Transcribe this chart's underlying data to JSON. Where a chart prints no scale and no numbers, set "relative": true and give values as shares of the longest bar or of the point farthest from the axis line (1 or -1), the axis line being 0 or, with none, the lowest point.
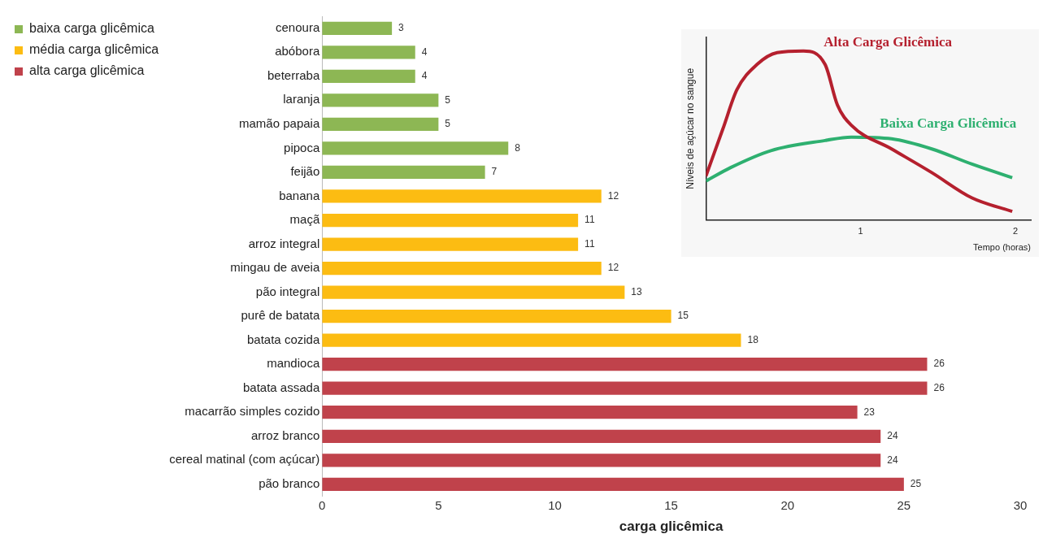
{
  "chart_data": [
    {
      "type": "bar",
      "orientation": "horizontal",
      "stacked": true,
      "xlabel": "carga glicêmica",
      "categories": [
        "cenoura",
        "abóbora",
        "beterraba",
        "laranja",
        "mamão papaia",
        "pipoca",
        "feijão",
        "banana",
        "maçã",
        "arroz integral",
        "mingau de aveia",
        "pão integral",
        "purê de batata",
        "batata cozida",
        "mandioca",
        "batata assada",
        "macarrão simples cozido",
        "arroz branco",
        "cereal matinal (com açúcar)",
        "pão branco"
      ],
      "series": [
        {
          "name": "baixa carga glicêmica",
          "color": "#8db754",
          "values": [
            3,
            4,
            4,
            5,
            5,
            8,
            7,
            null,
            null,
            null,
            null,
            null,
            null,
            null,
            null,
            null,
            null,
            null,
            null,
            null
          ]
        },
        {
          "name": "média carga glicêmica",
          "color": "#fcbc12",
          "values": [
            null,
            null,
            null,
            null,
            null,
            null,
            null,
            12,
            11,
            11,
            12,
            13,
            15,
            18,
            null,
            null,
            null,
            null,
            null,
            null
          ]
        },
        {
          "name": "alta carga glicêmica",
          "color": "#c0424b",
          "values": [
            null,
            null,
            null,
            null,
            null,
            null,
            null,
            null,
            null,
            null,
            null,
            null,
            null,
            null,
            26,
            26,
            23,
            24,
            24,
            25
          ]
        }
      ],
      "xlim": [
        0,
        30
      ],
      "xticks": [
        0,
        5,
        10,
        15,
        20,
        25,
        30
      ],
      "data_labels": true,
      "grid": false,
      "legend": "top left"
    },
    {
      "type": "line",
      "relative": true,
      "xlabel": "Tempo (horas)",
      "ylabel": "Níveis de açúcar no sangue",
      "xlim": [
        0,
        2.1
      ],
      "xticks": [
        1,
        2
      ],
      "grid": false,
      "legend": false,
      "marker": "none",
      "series": [
        {
          "name": "Alta Carga Glicêmica",
          "color": "#b5202e",
          "x": [
            0,
            0.11,
            0.2,
            0.33,
            0.46,
            0.63,
            0.77,
            0.85,
            0.94,
            1.2,
            1.46,
            1.72,
            1.98
          ],
          "values": [
            0.26,
            0.54,
            0.77,
            0.92,
            0.99,
            1,
            0.92,
            0.68,
            0.56,
            0.42,
            0.28,
            0.13,
            0.05
          ]
        },
        {
          "name": "Baixa Carga Glicêmica",
          "color": "#2eb070",
          "x": [
            0,
            0.16,
            0.42,
            0.77,
            0.94,
            1.2,
            1.46,
            1.72,
            1.98
          ],
          "values": [
            0.23,
            0.31,
            0.41,
            0.47,
            0.49,
            0.48,
            0.42,
            0.33,
            0.25
          ]
        }
      ]
    }
  ]
}
